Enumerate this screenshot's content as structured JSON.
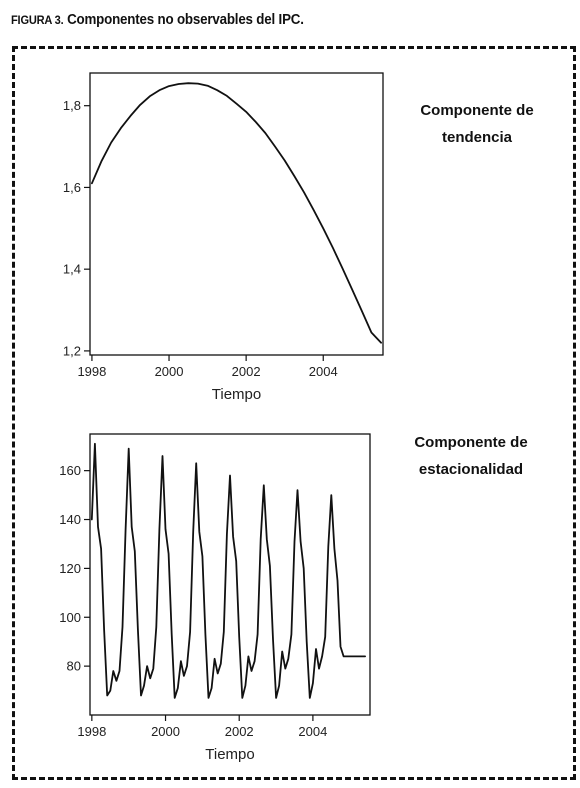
{
  "figure": {
    "label": "FIGURA 3.",
    "title": "Componentes no observables del IPC."
  },
  "chart_data": [
    {
      "type": "line",
      "title_lines": [
        "Componente de",
        "tendencia"
      ],
      "xlabel": "Tiempo",
      "ylabel": "",
      "xlim": [
        1997.95,
        2005.55
      ],
      "ylim": [
        1.19,
        1.88
      ],
      "x_ticks": [
        1998,
        2000,
        2002,
        2004
      ],
      "x_tick_labels": [
        "1998",
        "2000",
        "2002",
        "2004"
      ],
      "y_ticks": [
        1.2,
        1.4,
        1.6,
        1.8
      ],
      "y_tick_labels": [
        "1,2",
        "1,4",
        "1,6",
        "1,8"
      ],
      "grid": false,
      "series": [
        {
          "x": [
            1998.0,
            1998.25,
            1998.5,
            1998.75,
            1999.0,
            1999.25,
            1999.5,
            1999.75,
            2000.0,
            2000.25,
            2000.5,
            2000.75,
            2001.0,
            2001.25,
            2001.5,
            2001.75,
            2002.0,
            2002.25,
            2002.5,
            2002.75,
            2003.0,
            2003.25,
            2003.5,
            2003.75,
            2004.0,
            2004.25,
            2004.5,
            2004.75,
            2005.0,
            2005.25,
            2005.5
          ],
          "values": [
            1.61,
            1.665,
            1.71,
            1.745,
            1.775,
            1.802,
            1.823,
            1.838,
            1.848,
            1.853,
            1.855,
            1.854,
            1.849,
            1.838,
            1.824,
            1.805,
            1.785,
            1.76,
            1.733,
            1.7,
            1.666,
            1.628,
            1.588,
            1.545,
            1.5,
            1.452,
            1.402,
            1.35,
            1.298,
            1.245,
            1.22
          ]
        }
      ]
    },
    {
      "type": "line",
      "title_lines": [
        "Componente de",
        "estacionalidad"
      ],
      "xlabel": "Tiempo",
      "ylabel": "",
      "xlim": [
        1997.95,
        2005.55
      ],
      "ylim": [
        60,
        175
      ],
      "x_ticks": [
        1998,
        2000,
        2002,
        2004
      ],
      "x_tick_labels": [
        "1998",
        "2000",
        "2002",
        "2004"
      ],
      "y_ticks": [
        80,
        100,
        120,
        140,
        160
      ],
      "y_tick_labels": [
        "80",
        "100",
        "120",
        "140",
        "160"
      ],
      "grid": false,
      "series": [
        {
          "x": [
            1998.0,
            1998.083,
            1998.167,
            1998.25,
            1998.333,
            1998.417,
            1998.5,
            1998.583,
            1998.667,
            1998.75,
            1998.833,
            1998.917,
            1999.0,
            1999.083,
            1999.167,
            1999.25,
            1999.333,
            1999.417,
            1999.5,
            1999.583,
            1999.667,
            1999.75,
            1999.833,
            1999.917,
            2000.0,
            2000.083,
            2000.167,
            2000.25,
            2000.333,
            2000.417,
            2000.5,
            2000.583,
            2000.667,
            2000.75,
            2000.833,
            2000.917,
            2001.0,
            2001.083,
            2001.167,
            2001.25,
            2001.333,
            2001.417,
            2001.5,
            2001.583,
            2001.667,
            2001.75,
            2001.833,
            2001.917,
            2002.0,
            2002.083,
            2002.167,
            2002.25,
            2002.333,
            2002.417,
            2002.5,
            2002.583,
            2002.667,
            2002.75,
            2002.833,
            2002.917,
            2003.0,
            2003.083,
            2003.167,
            2003.25,
            2003.333,
            2003.417,
            2003.5,
            2003.583,
            2003.667,
            2003.75,
            2003.833,
            2003.917,
            2004.0,
            2004.083,
            2004.167,
            2004.25,
            2004.333,
            2004.417,
            2004.5,
            2004.583,
            2004.667,
            2004.75,
            2004.833,
            2004.917,
            2005.0,
            2005.083,
            2005.167,
            2005.25,
            2005.333,
            2005.417
          ],
          "values": [
            140,
            171,
            137,
            128,
            95,
            68,
            70,
            78,
            74,
            78,
            96,
            136,
            169,
            137,
            127,
            95,
            68,
            72,
            80,
            75,
            79,
            96,
            136,
            166,
            136,
            126,
            93,
            67,
            71,
            82,
            76,
            80,
            94,
            135,
            163,
            135,
            125,
            93,
            67,
            71,
            83,
            77,
            81,
            94,
            134,
            158,
            133,
            123,
            92,
            67,
            72,
            84,
            78,
            82,
            93,
            132,
            154,
            132,
            121,
            91,
            67,
            72,
            86,
            79,
            83,
            93,
            131,
            152,
            131,
            120,
            90,
            67,
            73,
            87,
            79,
            84,
            92,
            129,
            150,
            128,
            115,
            88,
            84,
            84,
            84,
            84,
            84,
            84,
            84,
            84
          ]
        }
      ]
    }
  ]
}
